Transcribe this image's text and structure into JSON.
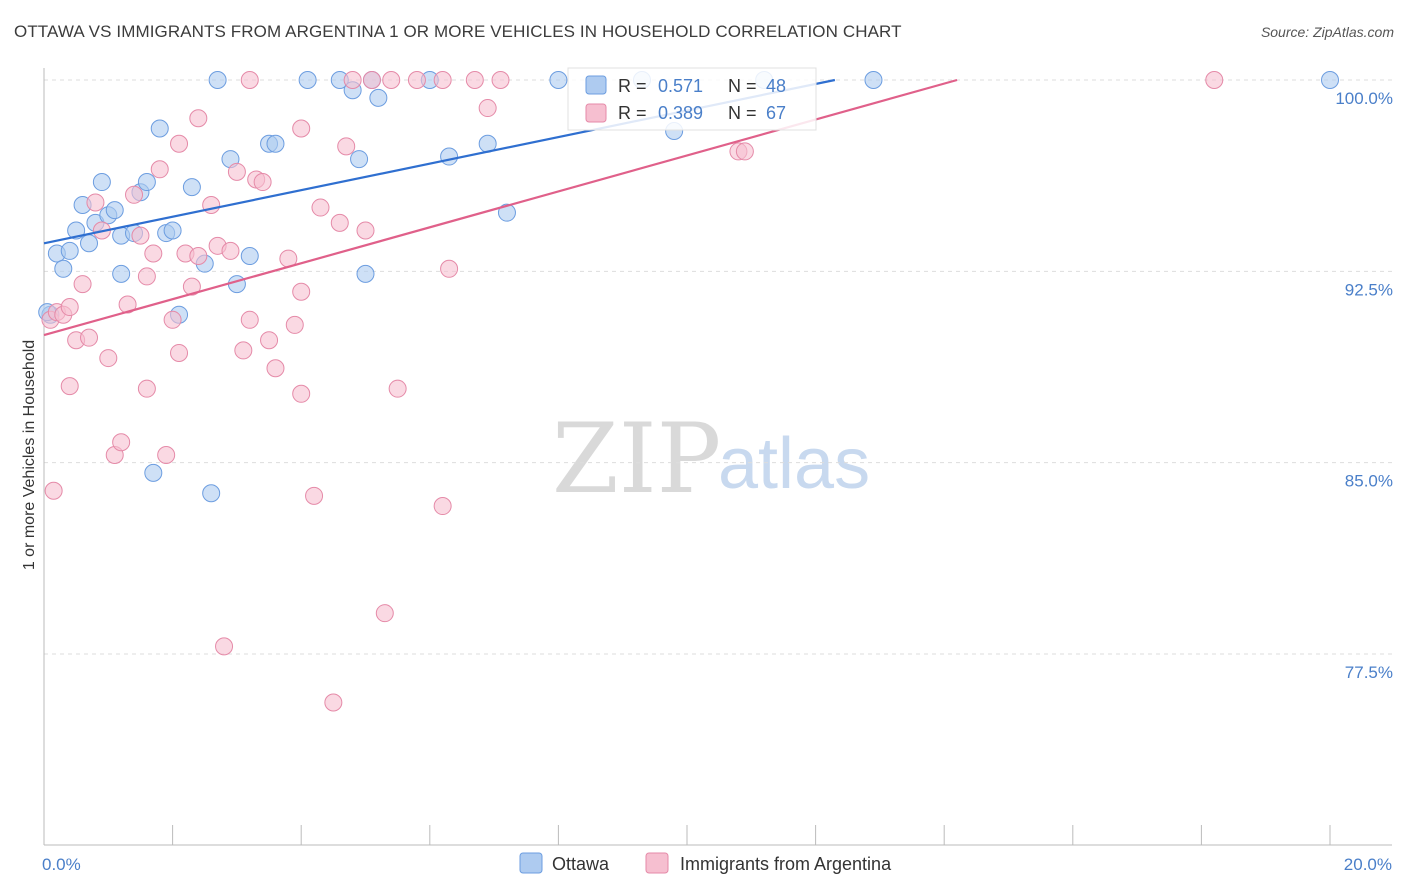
{
  "title": "OTTAWA VS IMMIGRANTS FROM ARGENTINA 1 OR MORE VEHICLES IN HOUSEHOLD CORRELATION CHART",
  "source": "Source: ZipAtlas.com",
  "watermark": {
    "zip": "ZIP",
    "atlas": "atlas"
  },
  "colors": {
    "ottawa_fill": "#aecbf0",
    "ottawa_stroke": "#6c9de0",
    "ottawa_line": "#2f6fd0",
    "arg_fill": "#f6bfd0",
    "arg_stroke": "#e58aa8",
    "arg_line": "#e0608a",
    "tick_text": "#4a7fc9",
    "grid": "#dddddd"
  },
  "legend": {
    "r_label": "R =",
    "n_label": "N =",
    "series": [
      {
        "r": "0.571",
        "n": "48"
      },
      {
        "r": "0.389",
        "n": "67"
      }
    ]
  },
  "chart_data": {
    "type": "scatter",
    "xlabel": "",
    "ylabel": "1 or more Vehicles in Household",
    "xlim": [
      0.0,
      20.0
    ],
    "ylim": [
      71.0,
      101.0
    ],
    "x_tick_labels": [
      {
        "v": 0.0,
        "label": "0.0%"
      },
      {
        "v": 20.0,
        "label": "20.0%"
      }
    ],
    "x_minor_ticks": [
      0,
      2,
      4,
      6,
      8,
      10,
      12,
      14,
      16,
      18,
      20
    ],
    "y_ticks": [
      {
        "v": 100.0,
        "label": "100.0%"
      },
      {
        "v": 92.5,
        "label": "92.5%"
      },
      {
        "v": 85.0,
        "label": "85.0%"
      },
      {
        "v": 77.5,
        "label": "77.5%"
      }
    ],
    "series": [
      {
        "name": "Ottawa",
        "trend": {
          "x0": 0.0,
          "y0": 93.6,
          "x1": 12.3,
          "y1": 100.0
        },
        "points": [
          [
            0.1,
            90.8
          ],
          [
            0.2,
            93.2
          ],
          [
            0.3,
            92.6
          ],
          [
            0.4,
            93.3
          ],
          [
            0.5,
            94.1
          ],
          [
            0.6,
            95.1
          ],
          [
            0.7,
            93.6
          ],
          [
            0.8,
            94.4
          ],
          [
            0.9,
            96.0
          ],
          [
            1.0,
            94.7
          ],
          [
            1.1,
            94.9
          ],
          [
            1.2,
            93.9
          ],
          [
            1.2,
            92.4
          ],
          [
            1.4,
            94.0
          ],
          [
            1.5,
            95.6
          ],
          [
            1.6,
            96.0
          ],
          [
            1.7,
            84.6
          ],
          [
            1.8,
            98.1
          ],
          [
            1.9,
            94.0
          ],
          [
            2.0,
            94.1
          ],
          [
            2.1,
            90.8
          ],
          [
            2.3,
            95.8
          ],
          [
            2.5,
            92.8
          ],
          [
            2.6,
            83.8
          ],
          [
            2.7,
            100.0
          ],
          [
            2.9,
            96.9
          ],
          [
            3.0,
            92.0
          ],
          [
            3.2,
            93.1
          ],
          [
            3.5,
            97.5
          ],
          [
            3.6,
            97.5
          ],
          [
            4.1,
            100.0
          ],
          [
            4.6,
            100.0
          ],
          [
            4.8,
            99.6
          ],
          [
            5.1,
            100.0
          ],
          [
            4.9,
            96.9
          ],
          [
            5.2,
            99.3
          ],
          [
            5.0,
            92.4
          ],
          [
            6.0,
            100.0
          ],
          [
            6.3,
            97.0
          ],
          [
            6.9,
            97.5
          ],
          [
            7.2,
            94.8
          ],
          [
            9.3,
            100.0
          ],
          [
            9.8,
            98.0
          ],
          [
            11.2,
            100.0
          ],
          [
            12.9,
            100.0
          ],
          [
            20.0,
            100.0
          ],
          [
            0.05,
            90.9
          ],
          [
            8.0,
            100.0
          ]
        ]
      },
      {
        "name": "Immigrants from Argentina",
        "trend": {
          "x0": 0.0,
          "y0": 90.0,
          "x1": 14.2,
          "y1": 100.0
        },
        "points": [
          [
            0.1,
            90.6
          ],
          [
            0.15,
            83.9
          ],
          [
            0.2,
            90.9
          ],
          [
            0.3,
            90.8
          ],
          [
            0.4,
            88.0
          ],
          [
            0.4,
            91.1
          ],
          [
            0.5,
            89.8
          ],
          [
            0.6,
            92.0
          ],
          [
            0.7,
            89.9
          ],
          [
            0.8,
            95.2
          ],
          [
            0.9,
            94.1
          ],
          [
            1.0,
            89.1
          ],
          [
            1.1,
            85.3
          ],
          [
            1.2,
            85.8
          ],
          [
            1.3,
            91.2
          ],
          [
            1.4,
            95.5
          ],
          [
            1.5,
            93.9
          ],
          [
            1.6,
            92.3
          ],
          [
            1.6,
            87.9
          ],
          [
            1.7,
            93.2
          ],
          [
            1.8,
            96.5
          ],
          [
            1.9,
            85.3
          ],
          [
            2.0,
            90.6
          ],
          [
            2.1,
            89.3
          ],
          [
            2.1,
            97.5
          ],
          [
            2.2,
            93.2
          ],
          [
            2.3,
            91.9
          ],
          [
            2.4,
            93.1
          ],
          [
            2.4,
            98.5
          ],
          [
            2.6,
            95.1
          ],
          [
            2.7,
            93.5
          ],
          [
            2.8,
            77.8
          ],
          [
            2.9,
            93.3
          ],
          [
            3.0,
            96.4
          ],
          [
            3.1,
            89.4
          ],
          [
            3.2,
            100.0
          ],
          [
            3.2,
            90.6
          ],
          [
            3.3,
            96.1
          ],
          [
            3.4,
            96.0
          ],
          [
            3.5,
            89.8
          ],
          [
            3.6,
            88.7
          ],
          [
            3.8,
            93.0
          ],
          [
            3.9,
            90.4
          ],
          [
            4.0,
            91.7
          ],
          [
            4.0,
            87.7
          ],
          [
            4.0,
            98.1
          ],
          [
            4.2,
            83.7
          ],
          [
            4.3,
            95.0
          ],
          [
            4.5,
            75.6
          ],
          [
            4.6,
            94.4
          ],
          [
            4.7,
            97.4
          ],
          [
            4.8,
            100.0
          ],
          [
            5.0,
            94.1
          ],
          [
            5.1,
            100.0
          ],
          [
            5.3,
            79.1
          ],
          [
            5.4,
            100.0
          ],
          [
            5.5,
            87.9
          ],
          [
            5.8,
            100.0
          ],
          [
            6.2,
            100.0
          ],
          [
            6.2,
            83.3
          ],
          [
            6.3,
            92.6
          ],
          [
            6.7,
            100.0
          ],
          [
            6.9,
            98.9
          ],
          [
            7.1,
            100.0
          ],
          [
            10.8,
            97.2
          ],
          [
            10.9,
            97.2
          ],
          [
            18.2,
            100.0
          ]
        ]
      }
    ]
  }
}
